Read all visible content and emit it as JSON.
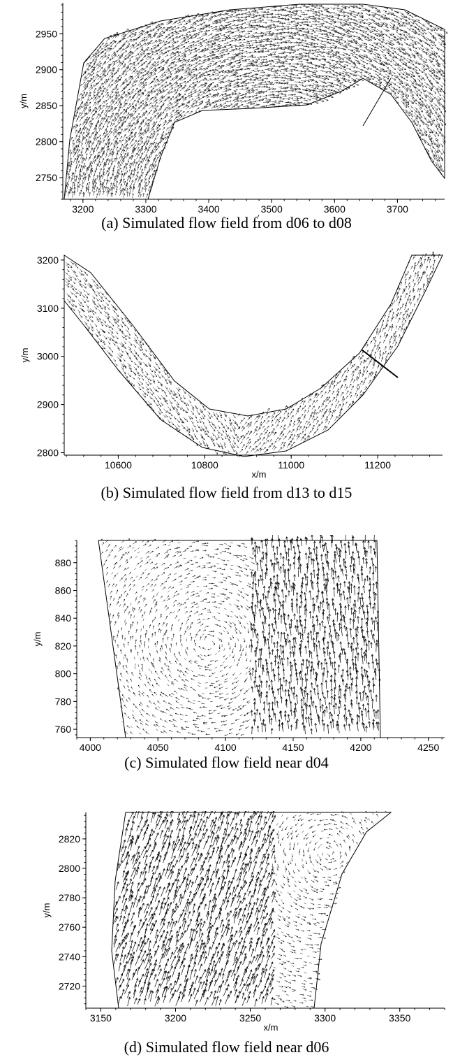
{
  "chart_data": [
    {
      "type": "vector-field",
      "caption": "(a)  Simulated flow field from d06 to d08",
      "xlabel": "x/m",
      "ylabel": "y/m",
      "xlim": [
        3168,
        3775
      ],
      "ylim": [
        2720,
        2993
      ],
      "xticks": [
        3200,
        3300,
        3400,
        3500,
        3600,
        3700
      ],
      "yticks": [
        2750,
        2800,
        2850,
        2900,
        2950
      ],
      "arrow_color": "#000000"
    },
    {
      "type": "vector-field",
      "caption": "(b)  Simulated flow field from d13 to d15",
      "xlabel": "x/m",
      "ylabel": "y/m",
      "xlim": [
        10475,
        11350
      ],
      "ylim": [
        2795,
        3210
      ],
      "xticks": [
        10600,
        10800,
        11000,
        11200
      ],
      "yticks": [
        2800,
        2900,
        3000,
        3100,
        3200
      ],
      "arrow_color": "#000000"
    },
    {
      "type": "vector-field",
      "caption": "(c)  Simulated flow field near d04",
      "xlabel": "x/m",
      "ylabel": "y/m",
      "xlim": [
        3990,
        4262
      ],
      "ylim": [
        754,
        896
      ],
      "xticks": [
        4000,
        4050,
        4100,
        4150,
        4200,
        4250
      ],
      "yticks": [
        760,
        780,
        800,
        820,
        840,
        860,
        880
      ],
      "arrow_color": "#000000"
    },
    {
      "type": "vector-field",
      "caption": "(d)  Simulated flow field near d06",
      "xlabel": "x/m",
      "ylabel": "y/m",
      "xlim": [
        3140,
        3380
      ],
      "ylim": [
        2705,
        2838
      ],
      "xticks": [
        3150,
        3200,
        3250,
        3300,
        3350
      ],
      "yticks": [
        2720,
        2740,
        2760,
        2780,
        2800,
        2820
      ],
      "arrow_color": "#000000"
    }
  ]
}
